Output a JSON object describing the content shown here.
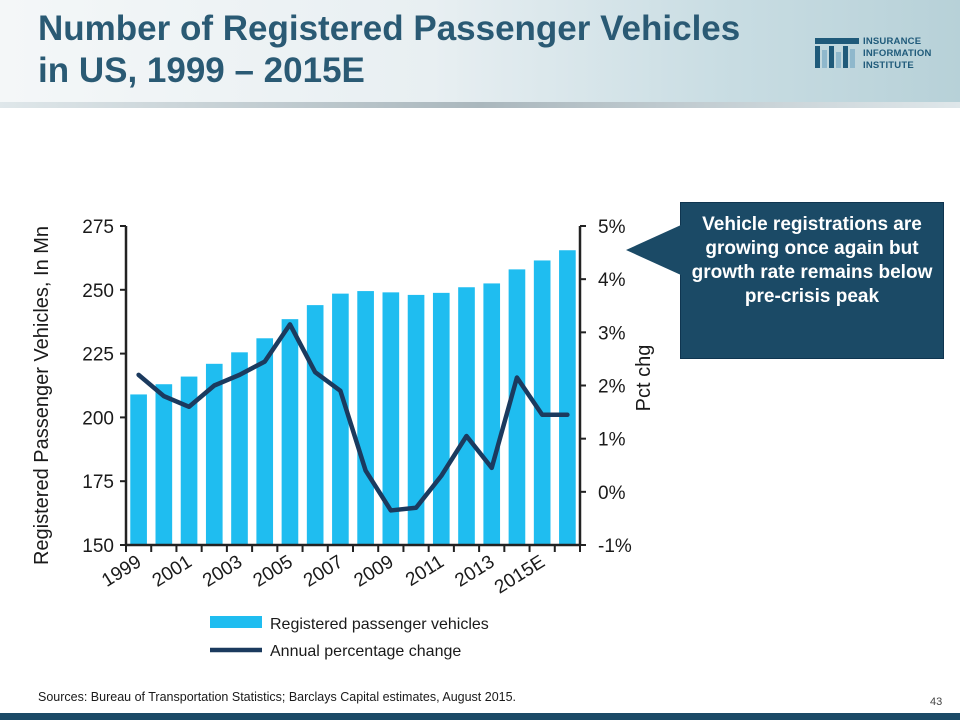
{
  "slide": {
    "title": "Number of Registered Passenger Vehicles in US, 1999 – 2015E",
    "source": "Sources: Bureau of Transportation Statistics; Barclays Capital estimates, August 2015.",
    "page_number": "43",
    "logo_text": "INSURANCE\nINFORMATION\nINSTITUTE",
    "callout": "Vehicle registrations are growing once again but growth rate remains below pre-crisis peak"
  },
  "colors": {
    "title": "#2a5a74",
    "bar": "#1fbdf0",
    "line": "#1b3a5e",
    "callout_bg": "#1b4a66"
  },
  "chart_data": {
    "type": "bar",
    "categories": [
      "1999",
      "2000",
      "2001",
      "2002",
      "2003",
      "2004",
      "2005",
      "2006",
      "2007",
      "2008",
      "2009",
      "2010",
      "2011",
      "2012",
      "2013",
      "2014",
      "2015E",
      "2016"
    ],
    "x_tick_labels": [
      "1999",
      "2001",
      "2003",
      "2005",
      "2007",
      "2009",
      "2011",
      "2013",
      "2015E"
    ],
    "ylabel": "Registered Passenger Vehicles, In Mn",
    "y2label": "Pct chg",
    "ylim": [
      150,
      275
    ],
    "y_ticks": [
      "150",
      "175",
      "200",
      "225",
      "250",
      "275"
    ],
    "y2lim": [
      -1,
      5
    ],
    "y2_ticks": [
      "-1%",
      "0%",
      "1%",
      "2%",
      "3%",
      "4%",
      "5%"
    ],
    "grid": false,
    "legend_position": "bottom",
    "series": [
      {
        "name": "Registered passenger vehicles",
        "type": "bar",
        "axis": "left",
        "values": [
          209,
          213,
          216,
          221,
          225.5,
          231,
          238.5,
          244,
          248.5,
          249.5,
          249,
          248,
          248.8,
          251,
          252.5,
          258,
          261.5,
          265.5
        ]
      },
      {
        "name": "Annual percentage change",
        "type": "line",
        "axis": "right",
        "values": [
          2.2,
          1.8,
          1.6,
          2.0,
          2.2,
          2.45,
          3.15,
          2.25,
          1.9,
          0.4,
          -0.35,
          -0.3,
          0.3,
          1.05,
          0.45,
          2.15,
          1.45,
          1.45
        ]
      }
    ]
  }
}
